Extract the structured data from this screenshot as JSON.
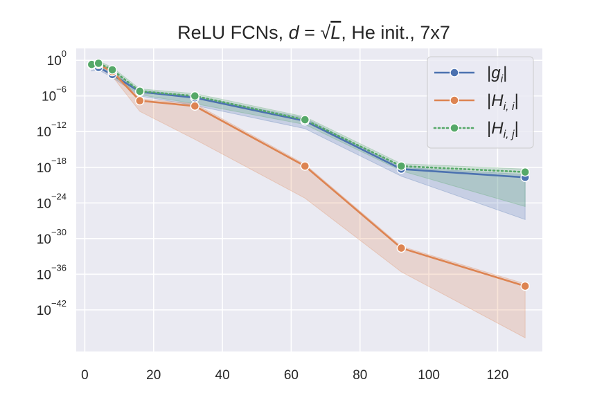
{
  "chart_data": {
    "type": "line",
    "title": {
      "prefix": "ReLU FCNs, ",
      "d": "d",
      "eq": " = ",
      "sqrt": "√",
      "L": "L",
      "suffix": ", He init., 7x7"
    },
    "xlabel": "",
    "ylabel": "",
    "xlim": [
      -2.5,
      133
    ],
    "ylim_log10": [
      -49,
      2
    ],
    "yscale": "log",
    "x_ticks": [
      0,
      20,
      40,
      60,
      80,
      100,
      120
    ],
    "y_ticks": [
      {
        "base": "10",
        "exp": "0",
        "log10": 0
      },
      {
        "base": "10",
        "exp": "−6",
        "log10": -6
      },
      {
        "base": "10",
        "exp": "−12",
        "log10": -12
      },
      {
        "base": "10",
        "exp": "−18",
        "log10": -18
      },
      {
        "base": "10",
        "exp": "−24",
        "log10": -24
      },
      {
        "base": "10",
        "exp": "−30",
        "log10": -30
      },
      {
        "base": "10",
        "exp": "−36",
        "log10": -36
      },
      {
        "base": "10",
        "exp": "−42",
        "log10": -42
      }
    ],
    "grid": true,
    "legend_position": "top-right",
    "series": [
      {
        "name": "g",
        "legend_main": "g",
        "legend_sub": "i",
        "color": "#4c72b0",
        "linestyle": "solid",
        "x": [
          2,
          4,
          8,
          16,
          32,
          64,
          92,
          128
        ],
        "log10_values": [
          -0.8,
          -1.2,
          -2.4,
          -5.3,
          -6.3,
          -10.2,
          -18.3,
          -19.7
        ],
        "band_upper": [
          -0.4,
          -0.8,
          -2.0,
          -5.0,
          -6.0,
          -9.7,
          -18.0,
          -19.2
        ],
        "band_lower": [
          -1.8,
          -1.6,
          -2.9,
          -6.0,
          -7.6,
          -11.5,
          -19.5,
          -26.8
        ]
      },
      {
        "name": "H_ii",
        "legend_main": "H",
        "legend_sub": "i, i",
        "color": "#dd8452",
        "linestyle": "solid",
        "x": [
          2,
          4,
          8,
          16,
          32,
          64,
          92,
          128
        ],
        "log10_values": [
          -0.7,
          -0.7,
          -1.9,
          -6.8,
          -7.7,
          -17.8,
          -31.6,
          -38.0
        ],
        "band_upper": [
          -0.3,
          -0.3,
          -1.5,
          -6.5,
          -7.3,
          -17.5,
          -31.3,
          -37.6
        ],
        "band_lower": [
          -1.2,
          -1.2,
          -2.7,
          -8.6,
          -13.3,
          -23.2,
          -35.6,
          -46.7
        ]
      },
      {
        "name": "H_ij",
        "legend_main": "H",
        "legend_sub": "i, j",
        "color": "#55a868",
        "linestyle": "dotted",
        "x": [
          2,
          4,
          8,
          16,
          32,
          64,
          92,
          128
        ],
        "log10_values": [
          -0.7,
          -0.5,
          -1.6,
          -5.2,
          -6.0,
          -10.0,
          -17.8,
          -18.8
        ],
        "band_upper": [
          -0.3,
          -0.1,
          -1.2,
          -4.8,
          -5.6,
          -9.5,
          -17.4,
          -18.3
        ],
        "band_lower": [
          -1.2,
          -1.2,
          -2.6,
          -5.8,
          -7.3,
          -10.8,
          -18.6,
          -24.6
        ]
      }
    ]
  }
}
